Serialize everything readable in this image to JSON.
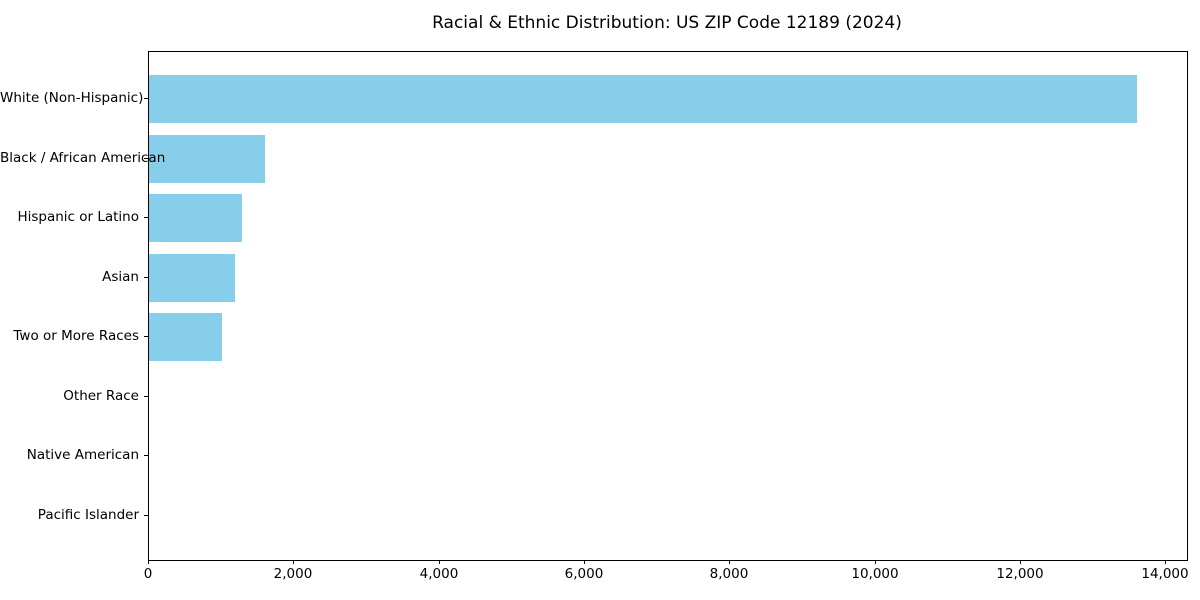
{
  "chart_data": {
    "type": "bar",
    "orientation": "horizontal",
    "title": "Racial & Ethnic Distribution: US ZIP Code 12189 (2024)",
    "categories": [
      "White (Non-Hispanic)",
      "Black / African American",
      "Hispanic or Latino",
      "Asian",
      "Two or More Races",
      "Other Race",
      "Native American",
      "Pacific Islander"
    ],
    "values": [
      13600,
      1590,
      1280,
      1180,
      1010,
      0,
      0,
      0
    ],
    "xlabel": "",
    "ylabel": "",
    "xlim": [
      0,
      14286
    ],
    "xticks": [
      0,
      2000,
      4000,
      6000,
      8000,
      10000,
      12000,
      14000
    ],
    "xtick_labels": [
      "0",
      "2,000",
      "4,000",
      "6,000",
      "8,000",
      "10,000",
      "12,000",
      "14,000"
    ],
    "bar_color": "#87CEEB",
    "text_color": "#000000",
    "background_color": "#FFFFFF",
    "grid": false,
    "legend": "none"
  }
}
